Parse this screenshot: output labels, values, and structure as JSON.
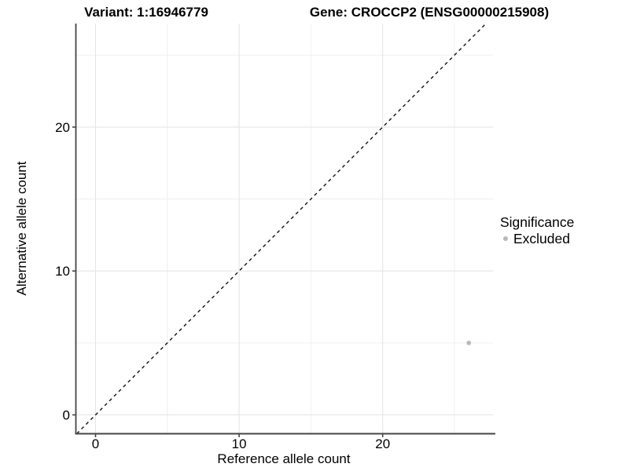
{
  "titles": {
    "variant": "Variant: 1:16946779",
    "gene": "Gene: CROCCP2 (ENSG00000215908)"
  },
  "axes": {
    "x": {
      "label": "Reference allele count",
      "tick_labels": [
        "0",
        "10",
        "20"
      ]
    },
    "y": {
      "label": "Alternative allele count",
      "tick_labels": [
        "0",
        "10",
        "20"
      ]
    }
  },
  "legend": {
    "title": "Significance",
    "items": [
      {
        "label": "Excluded",
        "color": "#b9b9b9"
      }
    ]
  },
  "colors": {
    "background": "#ffffff",
    "grid_major": "#e5e5e5",
    "grid_minor": "#f0f0f0",
    "axis_line": "#454545",
    "point": "#b9b9b9",
    "reference_line": "#111111"
  },
  "chart_data": {
    "type": "scatter",
    "title_left": "Variant: 1:16946779",
    "title_right": "Gene: CROCCP2 (ENSG00000215908)",
    "xlabel": "Reference allele count",
    "ylabel": "Alternative allele count",
    "xlim": [
      -1.5,
      27.7
    ],
    "ylim": [
      -1.3,
      27.2
    ],
    "x_ticks": [
      0,
      10,
      20
    ],
    "y_ticks": [
      0,
      10,
      20
    ],
    "x_minor_grid": [
      5,
      15,
      25
    ],
    "y_minor_grid": [
      5,
      15,
      25
    ],
    "grid": "major and minor, light grey on white",
    "legend_position": "right-center",
    "series": [
      {
        "name": "Excluded",
        "color": "#b9b9b9",
        "points": [
          [
            26,
            5
          ]
        ]
      }
    ],
    "reference_line": {
      "kind": "identity",
      "equation": "y = x",
      "style": "dashed",
      "color": "#111111"
    }
  }
}
